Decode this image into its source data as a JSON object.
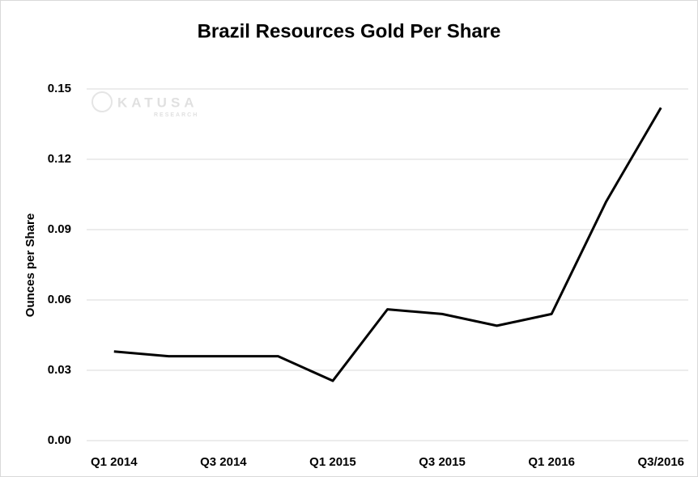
{
  "chart_data": {
    "type": "line",
    "title": "Brazil Resources Gold Per Share",
    "y_label": "Ounces per Share",
    "watermark": "KATUSA",
    "watermark_sub": "RESEARCH",
    "categories": [
      "Q1 2014",
      null,
      "Q3 2014",
      null,
      "Q1 2015",
      null,
      "Q3 2015",
      null,
      "Q1 2016",
      null,
      "Q3/2016"
    ],
    "series": [
      {
        "name": "Gold Per Share",
        "color": "#000000",
        "values": [
          0.038,
          0.036,
          0.036,
          0.036,
          0.0255,
          0.056,
          0.054,
          0.049,
          0.054,
          0.102,
          0.142
        ]
      }
    ],
    "ylim": [
      0,
      0.15
    ],
    "yticks": [
      {
        "value": 0,
        "label": "0.00"
      },
      {
        "value": 0.03,
        "label": "0.03"
      },
      {
        "value": 0.06,
        "label": "0.06"
      },
      {
        "value": 0.09,
        "label": "0.09"
      },
      {
        "value": 0.12,
        "label": "0.12"
      },
      {
        "value": 0.15,
        "label": "0.15"
      }
    ],
    "grid": true
  }
}
